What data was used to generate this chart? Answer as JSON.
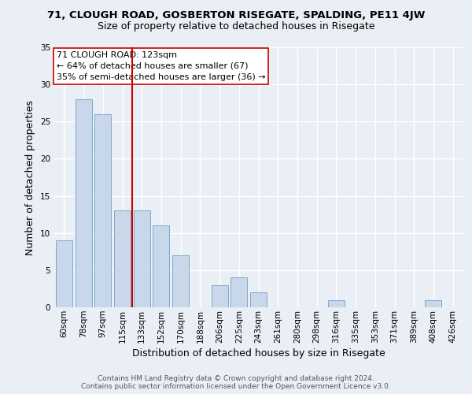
{
  "title_line1": "71, CLOUGH ROAD, GOSBERTON RISEGATE, SPALDING, PE11 4JW",
  "title_line2": "Size of property relative to detached houses in Risegate",
  "xlabel": "Distribution of detached houses by size in Risegate",
  "ylabel": "Number of detached properties",
  "categories": [
    "60sqm",
    "78sqm",
    "97sqm",
    "115sqm",
    "133sqm",
    "152sqm",
    "170sqm",
    "188sqm",
    "206sqm",
    "225sqm",
    "243sqm",
    "261sqm",
    "280sqm",
    "298sqm",
    "316sqm",
    "335sqm",
    "353sqm",
    "371sqm",
    "389sqm",
    "408sqm",
    "426sqm"
  ],
  "values": [
    9,
    28,
    26,
    13,
    13,
    11,
    7,
    0,
    3,
    4,
    2,
    0,
    0,
    0,
    1,
    0,
    0,
    0,
    0,
    1,
    0
  ],
  "bar_color": "#c8d8ea",
  "bar_edge_color": "#7aaac8",
  "vline_index": 3.5,
  "annotation_line1": "71 CLOUGH ROAD: 123sqm",
  "annotation_line2": "← 64% of detached houses are smaller (67)",
  "annotation_line3": "35% of semi-detached houses are larger (36) →",
  "annotation_box_color": "#ffffff",
  "annotation_box_edge_color": "#cc0000",
  "vline_color": "#cc0000",
  "ylim": [
    0,
    35
  ],
  "yticks": [
    0,
    5,
    10,
    15,
    20,
    25,
    30,
    35
  ],
  "footer_line1": "Contains HM Land Registry data © Crown copyright and database right 2024.",
  "footer_line2": "Contains public sector information licensed under the Open Government Licence v3.0.",
  "background_color": "#eaeff5",
  "plot_background_color": "#eaeff5",
  "grid_color": "#ffffff",
  "title_fontsize": 9.5,
  "subtitle_fontsize": 9,
  "axis_label_fontsize": 9,
  "tick_fontsize": 7.5,
  "annotation_fontsize": 8,
  "footer_fontsize": 6.5
}
